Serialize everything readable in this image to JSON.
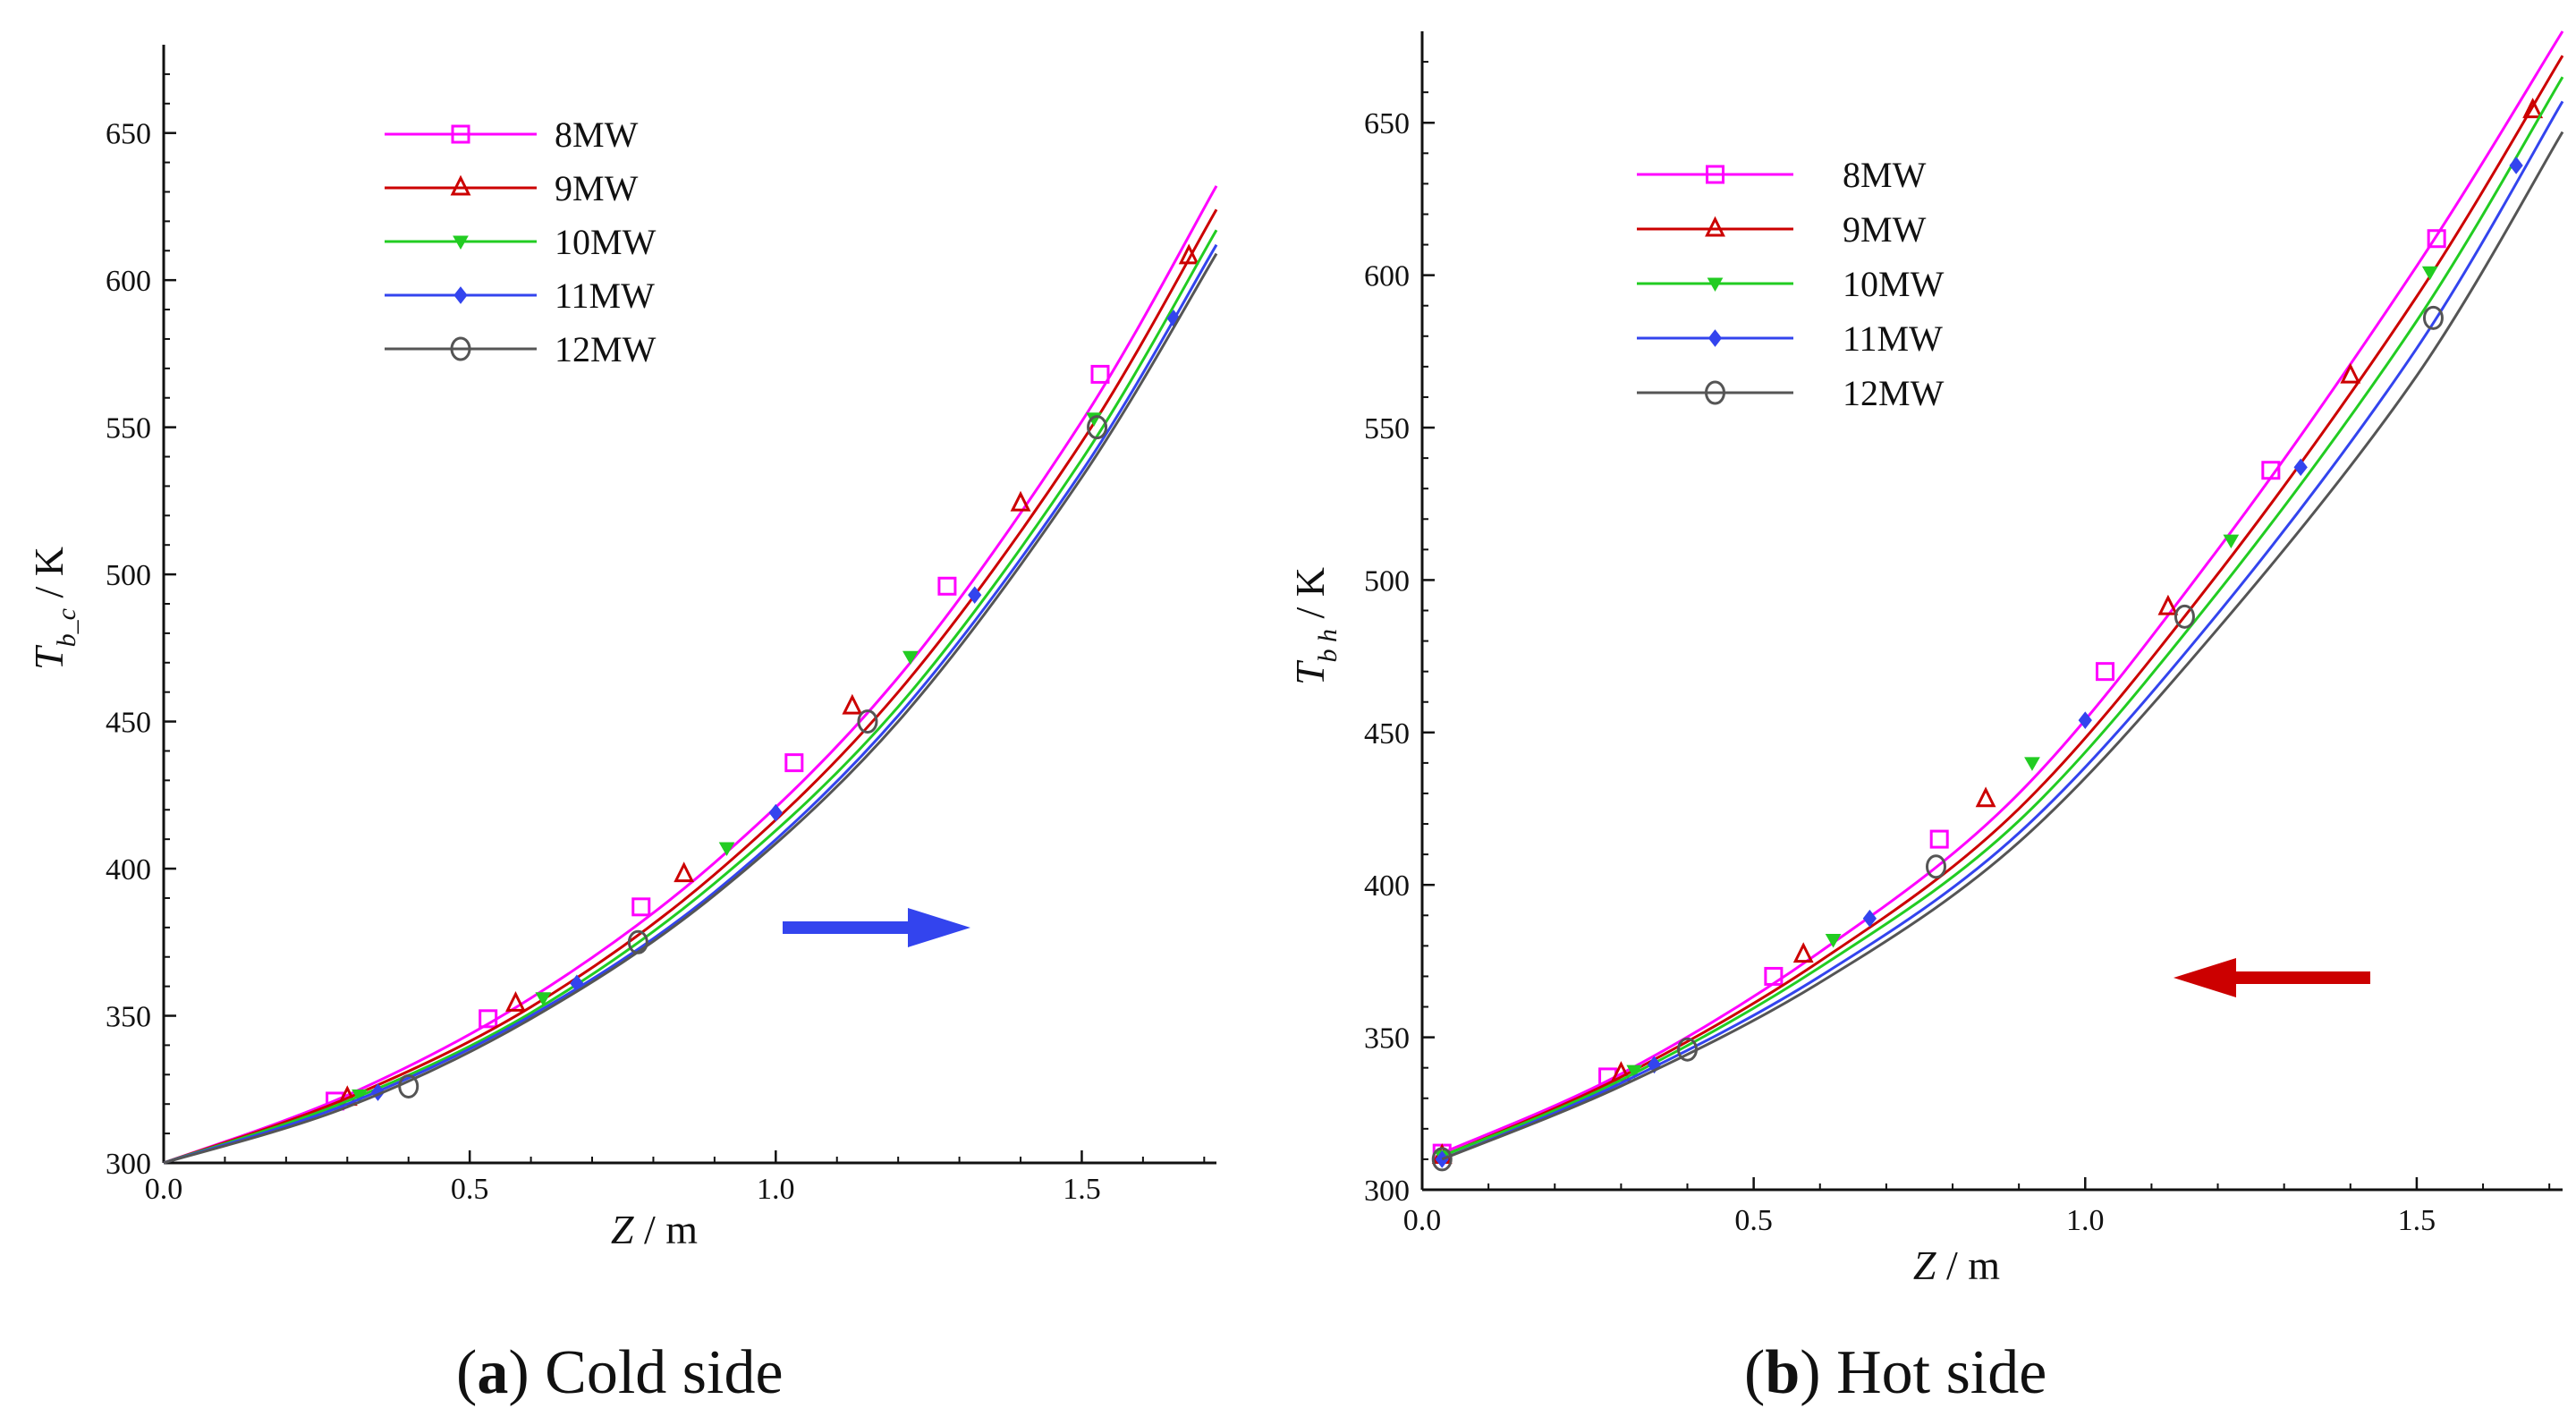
{
  "chart_data": [
    {
      "type": "line",
      "panel": "a",
      "caption_letter": "a",
      "caption_text": " Cold side",
      "xlabel": "Z",
      "xlabel_unit": "m",
      "ylabel": "T",
      "ylabel_sub": "b_c",
      "ylabel_unit": "K",
      "xlim": [
        0,
        1.72
      ],
      "ylim": [
        300,
        680
      ],
      "xticks": [
        0,
        0.5,
        1.0,
        1.5
      ],
      "xtick_labels": [
        "0.0",
        "0.5",
        "1.0",
        "1.5"
      ],
      "yticks": [
        300,
        350,
        400,
        450,
        500,
        550,
        600,
        650
      ],
      "ytick_labels": [
        "300",
        "350",
        "400",
        "450",
        "500",
        "550",
        "600",
        "650"
      ],
      "legend_position": "top-left",
      "flow_arrow": {
        "direction": "right",
        "color": "#3344ee"
      },
      "series": [
        {
          "name": "8MW",
          "color": "#ff00ff",
          "marker": "square",
          "x": [
            0,
            0.3,
            0.6,
            0.9,
            1.2,
            1.5,
            1.72
          ],
          "y": [
            300,
            323,
            356,
            402,
            465,
            552,
            632
          ],
          "marker_x": [
            0.28,
            0.53,
            0.78,
            1.03,
            1.28,
            1.53
          ],
          "marker_y": [
            321,
            349,
            387,
            436,
            496,
            568
          ]
        },
        {
          "name": "9MW",
          "color": "#cc0000",
          "marker": "triangle",
          "x": [
            0,
            0.3,
            0.6,
            0.9,
            1.2,
            1.5,
            1.72
          ],
          "y": [
            300,
            322,
            353,
            398,
            460,
            545,
            624
          ],
          "marker_x": [
            0.3,
            0.575,
            0.85,
            1.125,
            1.4,
            1.675
          ],
          "marker_y": [
            322,
            354,
            398,
            455,
            524,
            608
          ]
        },
        {
          "name": "10MW",
          "color": "#22cc22",
          "marker": "triangle-down",
          "x": [
            0,
            0.3,
            0.6,
            0.9,
            1.2,
            1.5,
            1.72
          ],
          "y": [
            300,
            321,
            351,
            395,
            455,
            539,
            617
          ],
          "marker_x": [
            0.32,
            0.62,
            0.92,
            1.22,
            1.52
          ],
          "marker_y": [
            323,
            356,
            407,
            472,
            553
          ]
        },
        {
          "name": "11MW",
          "color": "#3344ee",
          "marker": "diamond",
          "x": [
            0,
            0.3,
            0.6,
            0.9,
            1.2,
            1.5,
            1.72
          ],
          "y": [
            300,
            320,
            350,
            392,
            452,
            535,
            612
          ],
          "marker_x": [
            0.35,
            0.675,
            1.0,
            1.325,
            1.65
          ],
          "marker_y": [
            324,
            361,
            419,
            493,
            587
          ]
        },
        {
          "name": "12MW",
          "color": "#555555",
          "marker": "circle",
          "x": [
            0,
            0.3,
            0.6,
            0.9,
            1.2,
            1.5,
            1.72
          ],
          "y": [
            300,
            319,
            349,
            391,
            450,
            533,
            609
          ],
          "marker_x": [
            0.4,
            0.775,
            1.15,
            1.525
          ],
          "marker_y": [
            326,
            375,
            450,
            550
          ]
        }
      ]
    },
    {
      "type": "line",
      "panel": "b",
      "caption_letter": "b",
      "caption_text": " Hot side",
      "xlabel": "Z",
      "xlabel_unit": "m",
      "ylabel": "T",
      "ylabel_sub": "b h",
      "ylabel_unit": "K",
      "xlim": [
        0,
        1.72
      ],
      "ylim": [
        300,
        680
      ],
      "xticks": [
        0,
        0.5,
        1.0,
        1.5
      ],
      "xtick_labels": [
        "0.0",
        "0.5",
        "1.0",
        "1.5"
      ],
      "yticks": [
        300,
        350,
        400,
        450,
        500,
        550,
        600,
        650
      ],
      "ytick_labels": [
        "300",
        "350",
        "400",
        "450",
        "500",
        "550",
        "600",
        "650"
      ],
      "legend_position": "top-left",
      "flow_arrow": {
        "direction": "left",
        "color": "#cc0000"
      },
      "series": [
        {
          "name": "8MW",
          "color": "#ff00ff",
          "marker": "square",
          "x": [
            0.03,
            0.3,
            0.6,
            0.9,
            1.2,
            1.5,
            1.72
          ],
          "y": [
            312,
            338,
            378,
            430,
            510,
            603,
            680
          ],
          "marker_x": [
            0.03,
            0.28,
            0.53,
            0.78,
            1.03,
            1.28,
            1.53
          ],
          "marker_y": [
            312,
            337,
            370,
            415,
            470,
            536,
            612
          ]
        },
        {
          "name": "9MW",
          "color": "#cc0000",
          "marker": "triangle",
          "x": [
            0.03,
            0.3,
            0.6,
            0.9,
            1.2,
            1.5,
            1.72
          ],
          "y": [
            311,
            337,
            375,
            425,
            502,
            593,
            672
          ],
          "marker_x": [
            0.03,
            0.3,
            0.575,
            0.85,
            1.125,
            1.4,
            1.675
          ],
          "marker_y": [
            311,
            338,
            377,
            428,
            491,
            567,
            654
          ]
        },
        {
          "name": "10MW",
          "color": "#22cc22",
          "marker": "triangle-down",
          "x": [
            0.03,
            0.3,
            0.6,
            0.9,
            1.2,
            1.5,
            1.72
          ],
          "y": [
            311,
            336,
            373,
            421,
            496,
            585,
            665
          ],
          "marker_x": [
            0.03,
            0.32,
            0.62,
            0.92,
            1.22,
            1.52
          ],
          "marker_y": [
            311,
            339,
            382,
            440,
            513,
            601
          ]
        },
        {
          "name": "11MW",
          "color": "#3344ee",
          "marker": "diamond",
          "x": [
            0.03,
            0.3,
            0.6,
            0.9,
            1.2,
            1.5,
            1.72
          ],
          "y": [
            310,
            335,
            370,
            417,
            489,
            576,
            657
          ],
          "marker_x": [
            0.03,
            0.35,
            0.675,
            1.0,
            1.325,
            1.65
          ],
          "marker_y": [
            310,
            341,
            389,
            454,
            537,
            636
          ]
        },
        {
          "name": "12MW",
          "color": "#555555",
          "marker": "circle",
          "x": [
            0.03,
            0.3,
            0.6,
            0.9,
            1.2,
            1.5,
            1.72
          ],
          "y": [
            310,
            334,
            368,
            414,
            484,
            567,
            647
          ],
          "marker_x": [
            0.03,
            0.4,
            0.775,
            1.15,
            1.525
          ],
          "marker_y": [
            310,
            346,
            406,
            488,
            586
          ]
        }
      ]
    }
  ]
}
